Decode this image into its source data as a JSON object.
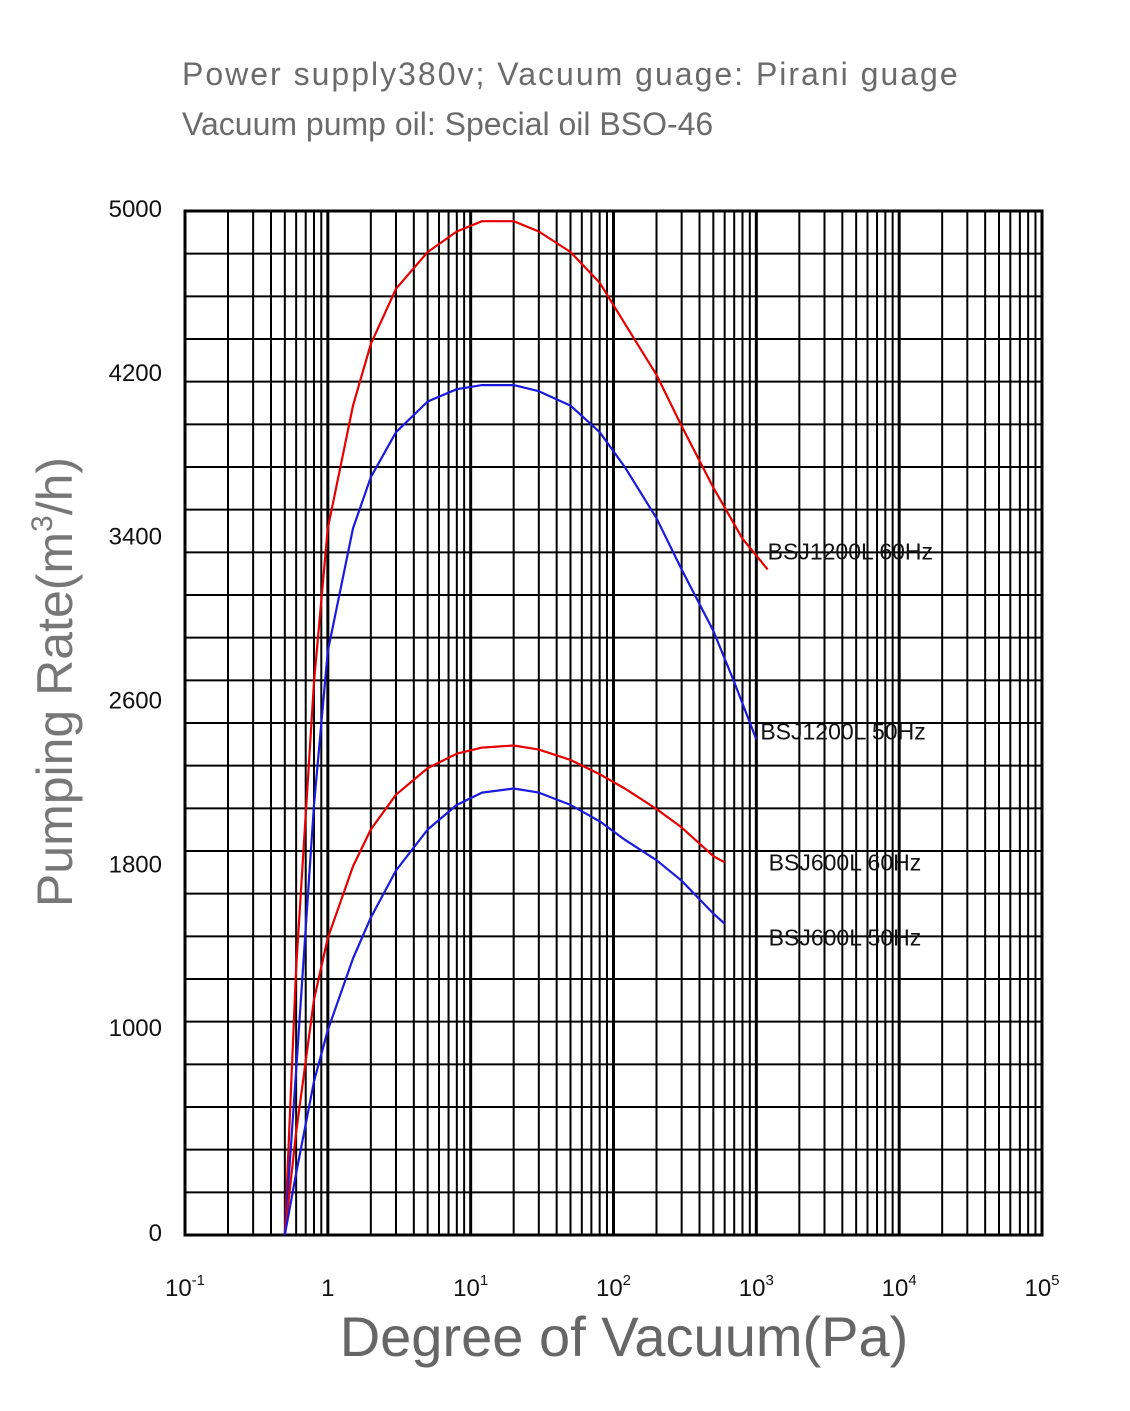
{
  "header": {
    "line1": "Power supply380v; Vacuum guage: Pirani guage",
    "line2": "Vacuum pump oil: Special oil BSO-46"
  },
  "chart_data": {
    "type": "line",
    "xscale": "log",
    "xlabel": "Degree of Vacuum(Pa)",
    "ylabel": "Pumping Rate(m³/h)",
    "xlim": [
      0.1,
      100000
    ],
    "ylim": [
      0,
      5000
    ],
    "yticks": [
      0,
      1000,
      1800,
      2600,
      3400,
      4200,
      5000
    ],
    "xticks": [
      {
        "base": "10",
        "exp": "-1"
      },
      {
        "base": "1",
        "exp": ""
      },
      {
        "base": "10",
        "exp": "1"
      },
      {
        "base": "10",
        "exp": "2"
      },
      {
        "base": "10",
        "exp": "3"
      },
      {
        "base": "10",
        "exp": "4"
      },
      {
        "base": "10",
        "exp": "5"
      }
    ],
    "grid": true,
    "series": [
      {
        "name": "BSJ1200L  60Hz",
        "color": "#e60000",
        "x": [
          0.5,
          0.6,
          0.8,
          1.0,
          1.5,
          2,
          3,
          5,
          8,
          12,
          20,
          30,
          50,
          80,
          120,
          200,
          300,
          500,
          800,
          1200
        ],
        "y": [
          0,
          1300,
          2700,
          3450,
          4050,
          4350,
          4620,
          4800,
          4900,
          4950,
          4950,
          4900,
          4800,
          4650,
          4450,
          4200,
          3950,
          3650,
          3400,
          3250
        ]
      },
      {
        "name": "BSJ1200L  50Hz",
        "color": "#1a1adc",
        "x": [
          0.5,
          0.6,
          0.8,
          1.0,
          1.5,
          2,
          3,
          5,
          8,
          12,
          20,
          30,
          50,
          80,
          120,
          200,
          300,
          500,
          700,
          1000
        ],
        "y": [
          0,
          800,
          2100,
          2850,
          3450,
          3700,
          3920,
          4070,
          4130,
          4150,
          4150,
          4120,
          4050,
          3920,
          3750,
          3500,
          3250,
          2950,
          2700,
          2420
        ]
      },
      {
        "name": "BSJ600L  60Hz",
        "color": "#e60000",
        "x": [
          0.5,
          0.6,
          0.8,
          1.0,
          1.5,
          2,
          3,
          5,
          8,
          12,
          20,
          30,
          50,
          80,
          120,
          200,
          300,
          500,
          600
        ],
        "y": [
          0,
          500,
          1150,
          1450,
          1800,
          1980,
          2150,
          2280,
          2350,
          2380,
          2390,
          2370,
          2320,
          2250,
          2180,
          2080,
          1990,
          1850,
          1820
        ]
      },
      {
        "name": "BSJ600L  50Hz",
        "color": "#1a1adc",
        "x": [
          0.5,
          0.6,
          0.8,
          1.0,
          1.5,
          2,
          3,
          5,
          8,
          12,
          20,
          30,
          50,
          80,
          120,
          200,
          300,
          500,
          600
        ],
        "y": [
          0,
          300,
          750,
          1000,
          1350,
          1550,
          1780,
          1980,
          2100,
          2160,
          2180,
          2160,
          2100,
          2020,
          1930,
          1830,
          1730,
          1570,
          1520
        ]
      }
    ]
  }
}
